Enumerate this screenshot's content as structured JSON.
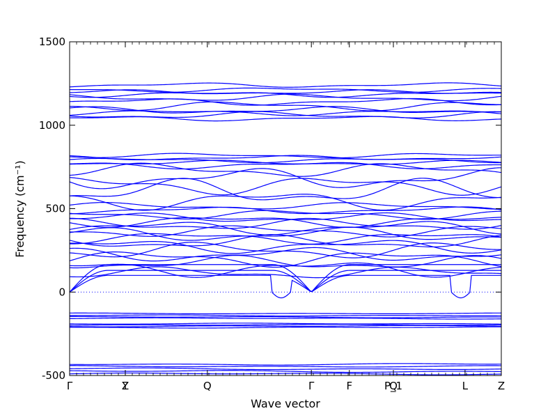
{
  "chart_data": {
    "type": "line",
    "title": "",
    "xlabel": "Wave vector",
    "ylabel": "Frequency (cm⁻¹)",
    "ylim": [
      -500,
      1500
    ],
    "yticks": [
      -500,
      0,
      500,
      1000,
      1500
    ],
    "x_high_symmetry": [
      {
        "x": 0.0,
        "label": "Γ"
      },
      {
        "x": 0.129,
        "label": "Y"
      },
      {
        "x": 0.129,
        "label": "Z"
      },
      {
        "x": 0.319,
        "label": "Q"
      },
      {
        "x": 0.56,
        "label": "Γ"
      },
      {
        "x": 0.648,
        "label": "F"
      },
      {
        "x": 0.75,
        "label": "P_1"
      },
      {
        "x": 0.75,
        "label": "Q"
      },
      {
        "x": 0.916,
        "label": "L"
      },
      {
        "x": 1.0,
        "label": "Z"
      }
    ],
    "zero_line": {
      "y": 0,
      "style": "dotted"
    },
    "series": [
      {
        "color": "#0000ff",
        "bands": [
          {
            "kind": "flat",
            "y": -490,
            "amp": 6
          },
          {
            "kind": "flat",
            "y": -475,
            "amp": 7
          },
          {
            "kind": "flat",
            "y": -460,
            "amp": 6
          },
          {
            "kind": "flat",
            "y": -445,
            "amp": 5
          },
          {
            "kind": "flat",
            "y": -432,
            "amp": 6
          },
          {
            "kind": "flat",
            "y": -212,
            "amp": 4
          },
          {
            "kind": "flat",
            "y": -204,
            "amp": 4
          },
          {
            "kind": "flat",
            "y": -197,
            "amp": 4
          },
          {
            "kind": "flat",
            "y": -190,
            "amp": 4
          },
          {
            "kind": "flat",
            "y": -158,
            "amp": 4
          },
          {
            "kind": "flat",
            "y": -150,
            "amp": 4
          },
          {
            "kind": "flat",
            "y": -140,
            "amp": 4
          },
          {
            "kind": "flat",
            "y": -128,
            "amp": 3
          },
          {
            "kind": "acoustic",
            "peak": 100,
            "dip": -35,
            "dipAt": [
              0.49,
              0.906
            ]
          },
          {
            "kind": "acoustic",
            "peak": 130,
            "dip": 0,
            "dipAt": []
          },
          {
            "kind": "acoustic",
            "peak": 165,
            "dip": 0,
            "dipAt": []
          },
          {
            "kind": "wave",
            "y": 115,
            "amp": 25
          },
          {
            "kind": "wave",
            "y": 140,
            "amp": 35
          },
          {
            "kind": "wave",
            "y": 175,
            "amp": 30
          },
          {
            "kind": "wave",
            "y": 200,
            "amp": 35
          },
          {
            "kind": "wave",
            "y": 225,
            "amp": 30
          },
          {
            "kind": "wave",
            "y": 250,
            "amp": 35
          },
          {
            "kind": "wave",
            "y": 275,
            "amp": 30
          },
          {
            "kind": "wave",
            "y": 300,
            "amp": 30
          },
          {
            "kind": "wave",
            "y": 325,
            "amp": 25
          },
          {
            "kind": "wave",
            "y": 345,
            "amp": 30
          },
          {
            "kind": "wave",
            "y": 365,
            "amp": 25
          },
          {
            "kind": "wave",
            "y": 385,
            "amp": 30
          },
          {
            "kind": "wave",
            "y": 405,
            "amp": 25
          },
          {
            "kind": "wave",
            "y": 425,
            "amp": 25
          },
          {
            "kind": "wave",
            "y": 445,
            "amp": 20
          },
          {
            "kind": "wave",
            "y": 465,
            "amp": 20
          },
          {
            "kind": "wave",
            "y": 490,
            "amp": 15
          },
          {
            "kind": "wave",
            "y": 515,
            "amp": 15
          },
          {
            "kind": "wave",
            "y": 550,
            "amp": 40
          },
          {
            "kind": "wave",
            "y": 600,
            "amp": 55
          },
          {
            "kind": "wave",
            "y": 640,
            "amp": 40
          },
          {
            "kind": "wave",
            "y": 680,
            "amp": 45
          },
          {
            "kind": "wave",
            "y": 730,
            "amp": 30
          },
          {
            "kind": "wave",
            "y": 760,
            "amp": 15
          },
          {
            "kind": "wave",
            "y": 775,
            "amp": 10
          },
          {
            "kind": "wave",
            "y": 790,
            "amp": 10
          },
          {
            "kind": "wave",
            "y": 805,
            "amp": 10
          },
          {
            "kind": "wave",
            "y": 818,
            "amp": 10
          },
          {
            "kind": "wave",
            "y": 1040,
            "amp": 10
          },
          {
            "kind": "wave",
            "y": 1060,
            "amp": 15
          },
          {
            "kind": "wave",
            "y": 1075,
            "amp": 12
          },
          {
            "kind": "wave",
            "y": 1090,
            "amp": 15
          },
          {
            "kind": "wave",
            "y": 1115,
            "amp": 20
          },
          {
            "kind": "wave",
            "y": 1140,
            "amp": 15
          },
          {
            "kind": "wave",
            "y": 1165,
            "amp": 15
          },
          {
            "kind": "wave",
            "y": 1185,
            "amp": 12
          },
          {
            "kind": "wave",
            "y": 1198,
            "amp": 10
          },
          {
            "kind": "wave",
            "y": 1212,
            "amp": 10
          },
          {
            "kind": "wave",
            "y": 1240,
            "amp": 10
          }
        ]
      }
    ]
  }
}
